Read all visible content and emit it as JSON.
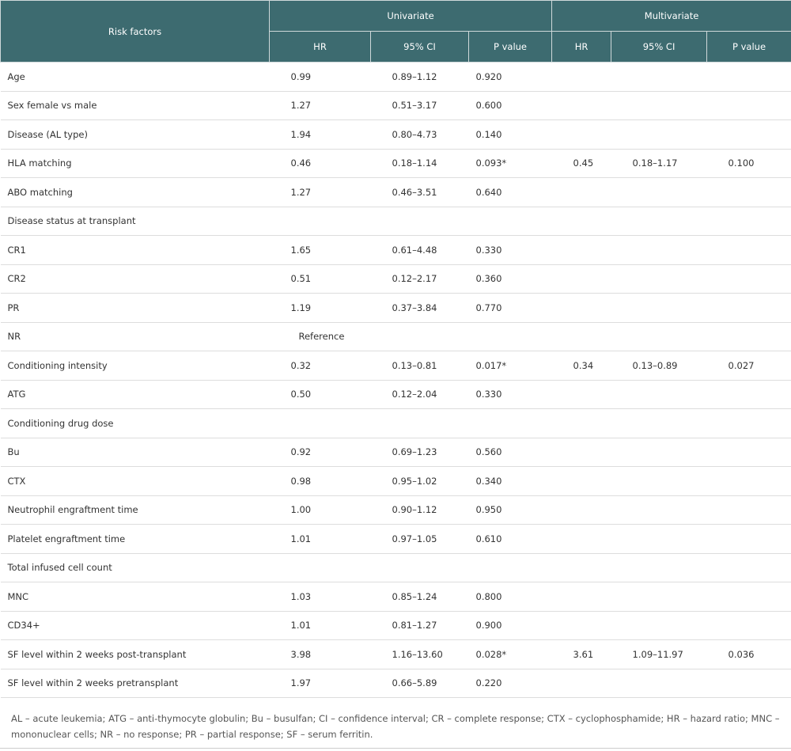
{
  "header": {
    "risk_factors": "Risk factors",
    "univariate": "Univariate",
    "multivariate": "Multivariate",
    "hr": "HR",
    "ci": "95% CI",
    "p": "P value"
  },
  "rows": [
    {
      "factor": "Age",
      "uhr": "0.99",
      "uci": "0.89–1.12",
      "up": "0.920",
      "mhr": "",
      "mci": "",
      "mp": ""
    },
    {
      "factor": "Sex female vs male",
      "uhr": "1.27",
      "uci": "0.51–3.17",
      "up": "0.600",
      "mhr": "",
      "mci": "",
      "mp": ""
    },
    {
      "factor": "Disease (AL type)",
      "uhr": "1.94",
      "uci": "0.80–4.73",
      "up": "0.140",
      "mhr": "",
      "mci": "",
      "mp": ""
    },
    {
      "factor": "HLA matching",
      "uhr": "0.46",
      "uci": "0.18–1.14",
      "up": "0.093*",
      "mhr": "0.45",
      "mci": "0.18–1.17",
      "mp": "0.100"
    },
    {
      "factor": "ABO matching",
      "uhr": "1.27",
      "uci": "0.46–3.51",
      "up": "0.640",
      "mhr": "",
      "mci": "",
      "mp": ""
    },
    {
      "factor": "Disease status at transplant",
      "uhr": "",
      "uci": "",
      "up": "",
      "mhr": "",
      "mci": "",
      "mp": ""
    },
    {
      "factor": "CR1",
      "uhr": "1.65",
      "uci": "0.61–4.48",
      "up": "0.330",
      "mhr": "",
      "mci": "",
      "mp": ""
    },
    {
      "factor": "CR2",
      "uhr": "0.51",
      "uci": "0.12–2.17",
      "up": "0.360",
      "mhr": "",
      "mci": "",
      "mp": ""
    },
    {
      "factor": "PR",
      "uhr": "1.19",
      "uci": "0.37–3.84",
      "up": "0.770",
      "mhr": "",
      "mci": "",
      "mp": ""
    },
    {
      "factor": "NR",
      "uhr": "Reference",
      "uci": "",
      "up": "",
      "mhr": "",
      "mci": "",
      "mp": "",
      "is_ref": true
    },
    {
      "factor": "Conditioning intensity",
      "uhr": "0.32",
      "uci": "0.13–0.81",
      "up": "0.017*",
      "mhr": "0.34",
      "mci": "0.13–0.89",
      "mp": "0.027"
    },
    {
      "factor": "ATG",
      "uhr": "0.50",
      "uci": "0.12–2.04",
      "up": "0.330",
      "mhr": "",
      "mci": "",
      "mp": ""
    },
    {
      "factor": "Conditioning drug dose",
      "uhr": "",
      "uci": "",
      "up": "",
      "mhr": "",
      "mci": "",
      "mp": ""
    },
    {
      "factor": "Bu",
      "uhr": "0.92",
      "uci": "0.69–1.23",
      "up": "0.560",
      "mhr": "",
      "mci": "",
      "mp": ""
    },
    {
      "factor": "CTX",
      "uhr": "0.98",
      "uci": "0.95–1.02",
      "up": "0.340",
      "mhr": "",
      "mci": "",
      "mp": ""
    },
    {
      "factor": "Neutrophil engraftment time",
      "uhr": "1.00",
      "uci": "0.90–1.12",
      "up": "0.950",
      "mhr": "",
      "mci": "",
      "mp": ""
    },
    {
      "factor": "Platelet engraftment time",
      "uhr": "1.01",
      "uci": "0.97–1.05",
      "up": "0.610",
      "mhr": "",
      "mci": "",
      "mp": ""
    },
    {
      "factor": "Total infused cell count",
      "uhr": "",
      "uci": "",
      "up": "",
      "mhr": "",
      "mci": "",
      "mp": ""
    },
    {
      "factor": "MNC",
      "uhr": "1.03",
      "uci": "0.85–1.24",
      "up": "0.800",
      "mhr": "",
      "mci": "",
      "mp": ""
    },
    {
      "factor": "CD34+",
      "uhr": "1.01",
      "uci": "0.81–1.27",
      "up": "0.900",
      "mhr": "",
      "mci": "",
      "mp": ""
    },
    {
      "factor": "SF level within 2 weeks post-transplant",
      "uhr": "3.98",
      "uci": "1.16–13.60",
      "up": "0.028*",
      "mhr": "3.61",
      "mci": "1.09–11.97",
      "mp": "0.036"
    },
    {
      "factor": "SF level within 2 weeks pretransplant",
      "uhr": "1.97",
      "uci": "0.66–5.89",
      "up": "0.220",
      "mhr": "",
      "mci": "",
      "mp": ""
    }
  ],
  "footnote": "AL – acute leukemia; ATG – anti-thymocyte globulin; Bu – busulfan; CI – confidence interval; CR – complete response; CTX – cyclophosphamide; HR – hazard ratio; MNC – mononuclear cells; NR – no response; PR – partial response; SF – serum ferritin."
}
